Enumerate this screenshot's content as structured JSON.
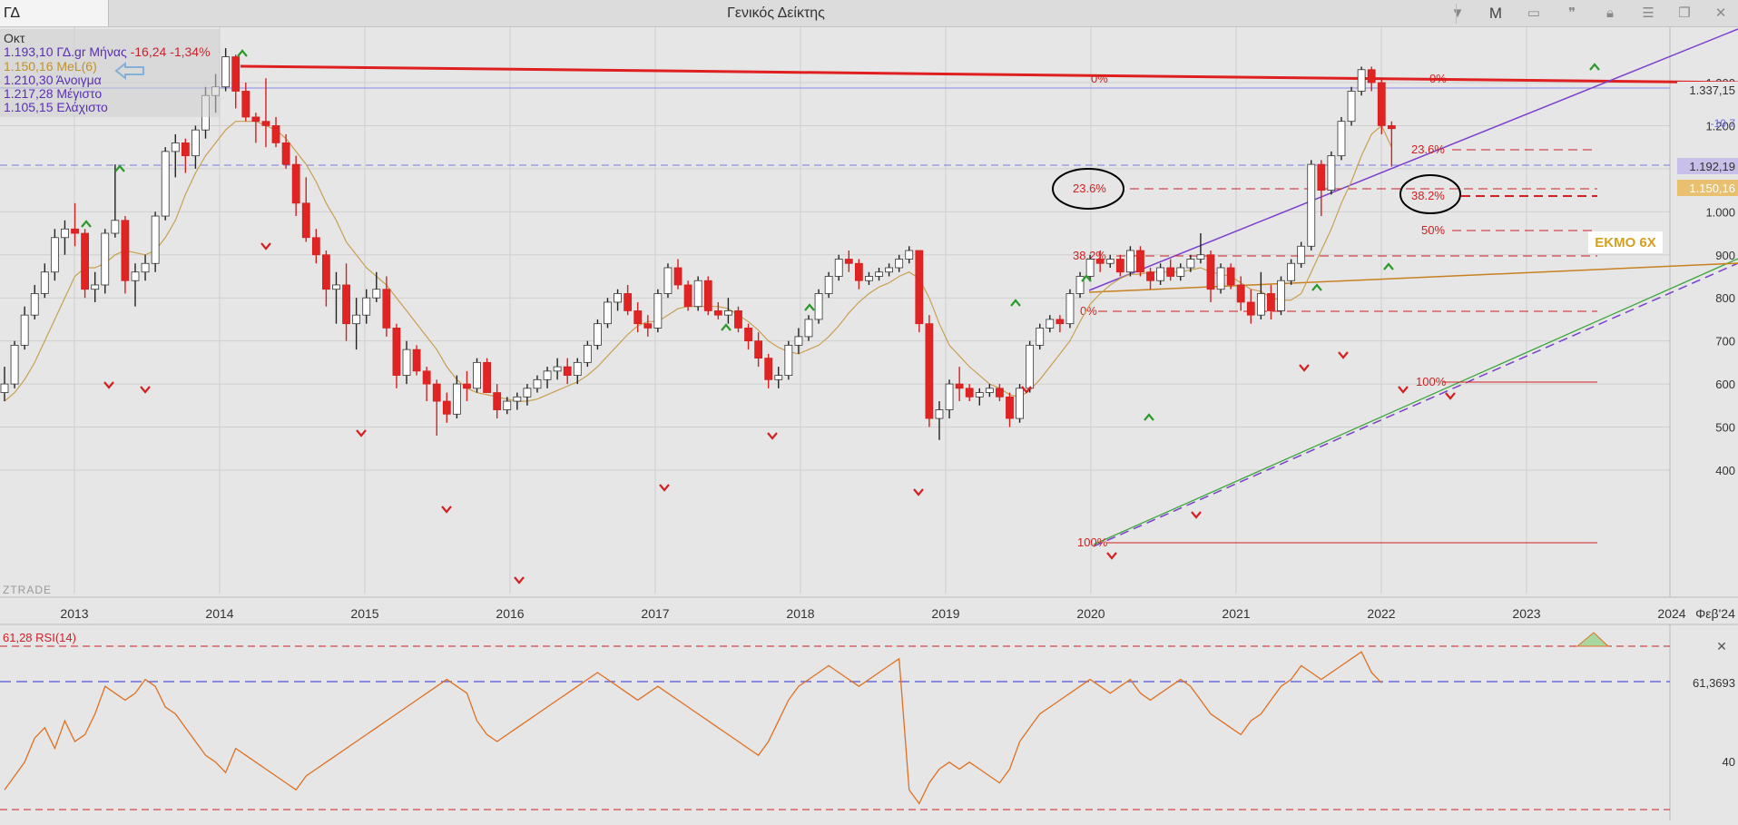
{
  "window": {
    "symbol": "ΓΔ",
    "title": "Γενικός Δείκτης",
    "buttons": [
      "M"
    ]
  },
  "info": {
    "month_label": "Οκτ",
    "close": "1.193,10",
    "symbol_name": "ΓΔ.gr Μήνας",
    "change": "-16,24 -1,34%",
    "ma_value": "1.150,16 MeL(6)",
    "open": "1.210,30 Άνοιγμα",
    "high": "1.217,28 Μέγιστο",
    "low": "1.105,15 Ελάχιστο"
  },
  "annotations": {
    "ekmo": "ΕΚΜΟ 6Χ",
    "watermark": "ZTRADE",
    "fib_left": [
      "0%",
      "23.6%",
      "38.2%",
      "0%",
      "100%"
    ],
    "fib_right": [
      "0%",
      "23.6%",
      "38.2%",
      "50%",
      "100%"
    ]
  },
  "price_axis": {
    "ticks": [
      "1.300",
      "1.200",
      "1.100",
      "1.000",
      "900",
      "800",
      "700",
      "600",
      "500",
      "400"
    ],
    "current_high": "1.337,15",
    "current_close": "1.192,19",
    "current_ma": "1.150,16",
    "pct_label": "-10,7"
  },
  "rsi_panel": {
    "label": "61,28 RSI(14)",
    "value_label": "61,3693",
    "tick": "40"
  },
  "chart_data": {
    "type": "candlestick",
    "title": "Γενικός Δείκτης",
    "xlabel": "",
    "ylabel": "",
    "x_ticks": [
      "2013",
      "2014",
      "2015",
      "2016",
      "2017",
      "2018",
      "2019",
      "2020",
      "2021",
      "2022",
      "2023",
      "2024",
      "Φεβ'24"
    ],
    "ylim": [
      380,
      1420
    ],
    "grid": true,
    "series": [
      {
        "name": "ΓΔ.gr Μήνας",
        "ohlc": [
          [
            580,
            640,
            560,
            600
          ],
          [
            600,
            700,
            590,
            690
          ],
          [
            690,
            780,
            680,
            760
          ],
          [
            760,
            830,
            750,
            810
          ],
          [
            810,
            880,
            800,
            860
          ],
          [
            860,
            960,
            840,
            940
          ],
          [
            940,
            980,
            900,
            960
          ],
          [
            960,
            1020,
            920,
            950
          ],
          [
            950,
            960,
            800,
            820
          ],
          [
            820,
            860,
            790,
            830
          ],
          [
            830,
            960,
            810,
            950
          ],
          [
            950,
            1110,
            940,
            980
          ],
          [
            980,
            990,
            810,
            840
          ],
          [
            840,
            880,
            780,
            860
          ],
          [
            860,
            900,
            840,
            880
          ],
          [
            880,
            1000,
            860,
            990
          ],
          [
            990,
            1150,
            980,
            1140
          ],
          [
            1140,
            1180,
            1080,
            1160
          ],
          [
            1160,
            1170,
            1090,
            1130
          ],
          [
            1130,
            1200,
            1100,
            1190
          ],
          [
            1190,
            1290,
            1170,
            1270
          ],
          [
            1270,
            1320,
            1230,
            1290
          ],
          [
            1290,
            1380,
            1280,
            1360
          ],
          [
            1360,
            1365,
            1240,
            1280
          ],
          [
            1280,
            1300,
            1210,
            1220
          ],
          [
            1220,
            1230,
            1160,
            1210
          ],
          [
            1210,
            1310,
            1150,
            1200
          ],
          [
            1200,
            1220,
            1150,
            1160
          ],
          [
            1160,
            1180,
            1100,
            1110
          ],
          [
            1110,
            1130,
            990,
            1020
          ],
          [
            1020,
            1080,
            930,
            940
          ],
          [
            940,
            960,
            880,
            900
          ],
          [
            900,
            910,
            780,
            820
          ],
          [
            820,
            860,
            740,
            830
          ],
          [
            830,
            880,
            700,
            740
          ],
          [
            740,
            800,
            680,
            760
          ],
          [
            760,
            820,
            740,
            800
          ],
          [
            800,
            860,
            790,
            820
          ],
          [
            820,
            850,
            710,
            730
          ],
          [
            730,
            740,
            590,
            620
          ],
          [
            620,
            700,
            600,
            680
          ],
          [
            680,
            690,
            620,
            630
          ],
          [
            630,
            640,
            560,
            600
          ],
          [
            600,
            610,
            480,
            560
          ],
          [
            560,
            580,
            510,
            530
          ],
          [
            530,
            620,
            520,
            600
          ],
          [
            600,
            630,
            560,
            590
          ],
          [
            590,
            660,
            580,
            650
          ],
          [
            650,
            660,
            580,
            580
          ],
          [
            580,
            600,
            520,
            540
          ],
          [
            540,
            570,
            530,
            560
          ],
          [
            560,
            580,
            540,
            570
          ],
          [
            570,
            600,
            550,
            590
          ],
          [
            590,
            620,
            580,
            610
          ],
          [
            610,
            640,
            590,
            630
          ],
          [
            630,
            660,
            610,
            640
          ],
          [
            640,
            660,
            600,
            620
          ],
          [
            620,
            660,
            600,
            650
          ],
          [
            650,
            700,
            640,
            690
          ],
          [
            690,
            750,
            680,
            740
          ],
          [
            740,
            800,
            730,
            790
          ],
          [
            790,
            820,
            770,
            810
          ],
          [
            810,
            830,
            760,
            770
          ],
          [
            770,
            790,
            720,
            740
          ],
          [
            740,
            760,
            710,
            730
          ],
          [
            730,
            820,
            720,
            810
          ],
          [
            810,
            880,
            800,
            870
          ],
          [
            870,
            890,
            820,
            830
          ],
          [
            830,
            840,
            770,
            780
          ],
          [
            780,
            850,
            770,
            840
          ],
          [
            840,
            850,
            760,
            770
          ],
          [
            770,
            790,
            750,
            760
          ],
          [
            760,
            800,
            740,
            770
          ],
          [
            770,
            780,
            720,
            730
          ],
          [
            730,
            740,
            680,
            700
          ],
          [
            700,
            720,
            640,
            660
          ],
          [
            660,
            670,
            590,
            610
          ],
          [
            610,
            640,
            590,
            620
          ],
          [
            620,
            700,
            610,
            690
          ],
          [
            690,
            730,
            670,
            710
          ],
          [
            710,
            760,
            700,
            750
          ],
          [
            750,
            820,
            740,
            810
          ],
          [
            810,
            860,
            800,
            850
          ],
          [
            850,
            900,
            840,
            890
          ],
          [
            890,
            910,
            860,
            880
          ],
          [
            880,
            890,
            820,
            840
          ],
          [
            840,
            860,
            830,
            850
          ],
          [
            850,
            870,
            840,
            860
          ],
          [
            860,
            880,
            850,
            870
          ],
          [
            870,
            900,
            860,
            890
          ],
          [
            890,
            920,
            880,
            910
          ],
          [
            910,
            910,
            720,
            740
          ],
          [
            740,
            760,
            500,
            520
          ],
          [
            520,
            560,
            470,
            540
          ],
          [
            540,
            610,
            520,
            600
          ],
          [
            600,
            640,
            560,
            590
          ],
          [
            590,
            600,
            560,
            570
          ],
          [
            570,
            590,
            550,
            580
          ],
          [
            580,
            600,
            570,
            590
          ],
          [
            590,
            600,
            560,
            570
          ],
          [
            570,
            580,
            500,
            520
          ],
          [
            520,
            600,
            510,
            590
          ],
          [
            590,
            700,
            580,
            690
          ],
          [
            690,
            740,
            680,
            730
          ],
          [
            730,
            760,
            720,
            750
          ],
          [
            750,
            760,
            720,
            740
          ],
          [
            740,
            820,
            730,
            810
          ],
          [
            810,
            860,
            800,
            850
          ],
          [
            850,
            900,
            840,
            890
          ],
          [
            890,
            910,
            860,
            880
          ],
          [
            880,
            900,
            870,
            890
          ],
          [
            890,
            900,
            850,
            860
          ],
          [
            860,
            920,
            850,
            910
          ],
          [
            910,
            920,
            850,
            860
          ],
          [
            860,
            870,
            820,
            840
          ],
          [
            840,
            880,
            830,
            870
          ],
          [
            870,
            890,
            840,
            850
          ],
          [
            850,
            880,
            840,
            870
          ],
          [
            870,
            900,
            860,
            890
          ],
          [
            890,
            950,
            880,
            900
          ],
          [
            900,
            910,
            790,
            820
          ],
          [
            820,
            880,
            810,
            870
          ],
          [
            870,
            880,
            820,
            830
          ],
          [
            830,
            850,
            770,
            790
          ],
          [
            790,
            820,
            740,
            760
          ],
          [
            760,
            860,
            750,
            810
          ],
          [
            810,
            830,
            750,
            770
          ],
          [
            770,
            850,
            760,
            840
          ],
          [
            840,
            890,
            830,
            880
          ],
          [
            880,
            930,
            870,
            920
          ],
          [
            920,
            1120,
            910,
            1110
          ],
          [
            1110,
            1120,
            990,
            1050
          ],
          [
            1050,
            1140,
            1040,
            1130
          ],
          [
            1130,
            1220,
            1120,
            1210
          ],
          [
            1210,
            1290,
            1200,
            1280
          ],
          [
            1280,
            1337,
            1270,
            1330
          ],
          [
            1330,
            1337,
            1280,
            1300
          ],
          [
            1300,
            1310,
            1180,
            1200
          ],
          [
            1200,
            1210,
            1105,
            1193
          ]
        ]
      },
      {
        "name": "MeL(6)",
        "values": [
          560,
          580,
          610,
          650,
          700,
          750,
          800,
          850,
          870,
          870,
          880,
          900,
          910,
          905,
          900,
          910,
          940,
          980,
          1040,
          1090,
          1130,
          1160,
          1190,
          1210,
          1210,
          1210,
          1200,
          1190,
          1170,
          1140,
          1110,
          1070,
          1020,
          980,
          930,
          900,
          870,
          850,
          830,
          800,
          770,
          740,
          710,
          680,
          640,
          610,
          590,
          580,
          575,
          570,
          565,
          560,
          560,
          565,
          575,
          585,
          595,
          605,
          620,
          640,
          665,
          690,
          715,
          735,
          745,
          745,
          760,
          775,
          780,
          780,
          780,
          780,
          775,
          760,
          745,
          725,
          700,
          685,
          675,
          670,
          680,
          690,
          710,
          735,
          765,
          790,
          810,
          825,
          835,
          850,
          860,
          845,
          800,
          740,
          690,
          665,
          640,
          620,
          600,
          590,
          575,
          570,
          585,
          610,
          640,
          670,
          700,
          745,
          785,
          810,
          830,
          845,
          855,
          855,
          860,
          860,
          860,
          860,
          865,
          870,
          860,
          855,
          850,
          835,
          820,
          815,
          800,
          795,
          795,
          810,
          860,
          910,
          960,
          1020,
          1070,
          1130,
          1180,
          1200,
          1150
        ]
      },
      {
        "name": "RSI(14)",
        "values": [
          30,
          34,
          38,
          45,
          48,
          42,
          50,
          44,
          46,
          52,
          60,
          58,
          56,
          58,
          62,
          60,
          54,
          52,
          48,
          44,
          40,
          38,
          35,
          42,
          40,
          38,
          36,
          34,
          32,
          30,
          34,
          36,
          38,
          40,
          42,
          44,
          46,
          48,
          50,
          52,
          54,
          56,
          58,
          60,
          62,
          60,
          58,
          50,
          46,
          44,
          46,
          48,
          50,
          52,
          54,
          56,
          58,
          60,
          62,
          64,
          62,
          60,
          58,
          56,
          58,
          60,
          58,
          56,
          54,
          52,
          50,
          48,
          46,
          44,
          42,
          40,
          44,
          50,
          56,
          60,
          62,
          64,
          66,
          64,
          62,
          60,
          62,
          64,
          66,
          68,
          30,
          26,
          32,
          36,
          38,
          36,
          38,
          36,
          34,
          32,
          36,
          44,
          48,
          52,
          54,
          56,
          58,
          60,
          62,
          60,
          58,
          60,
          62,
          58,
          56,
          58,
          60,
          62,
          60,
          56,
          52,
          50,
          48,
          46,
          50,
          52,
          56,
          60,
          62,
          66,
          64,
          62,
          64,
          66,
          68,
          70,
          64,
          61
        ]
      }
    ],
    "legend": [
      "ΓΔ.gr Μήνας",
      "MeL(6)",
      "RSI(14)"
    ]
  }
}
